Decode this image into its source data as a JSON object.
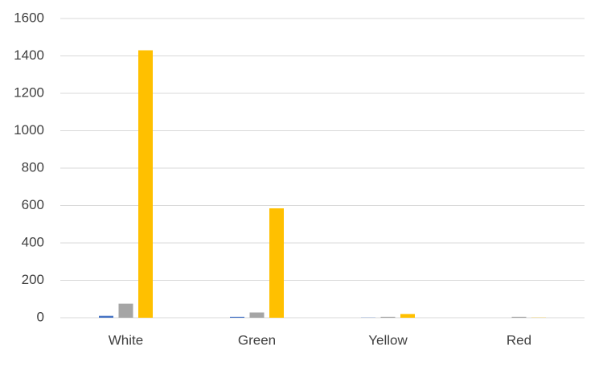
{
  "chart_data": {
    "type": "bar",
    "categories": [
      "White",
      "Green",
      "Yellow",
      "Red"
    ],
    "series": [
      {
        "color": "#4472c4",
        "values": [
          10,
          5,
          1,
          0
        ]
      },
      {
        "color": "#a5a5a5",
        "values": [
          75,
          28,
          5,
          5
        ]
      },
      {
        "color": "#ffc000",
        "values": [
          1430,
          585,
          20,
          1
        ]
      }
    ],
    "ylim": [
      0,
      1600
    ],
    "yticks": [
      0,
      200,
      400,
      600,
      800,
      1000,
      1200,
      1400,
      1600
    ],
    "grid": true
  }
}
